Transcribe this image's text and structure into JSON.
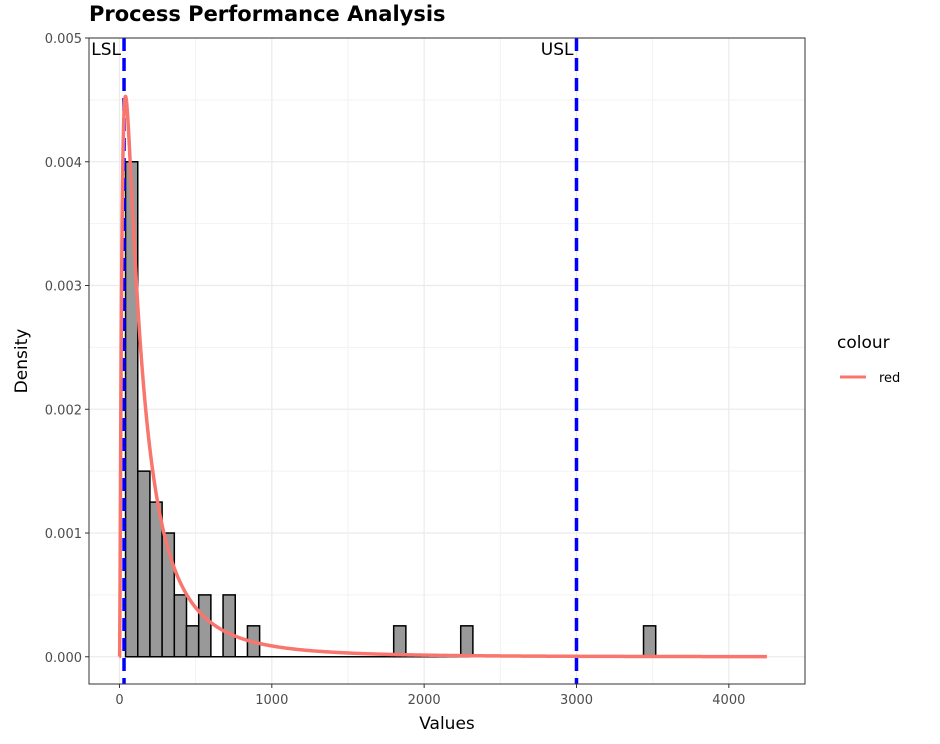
{
  "chart_data": {
    "type": "bar",
    "title": "Process Performance Analysis",
    "xlabel": "Values",
    "ylabel": "Density",
    "xlim": [
      -200,
      4500
    ],
    "ylim": [
      -0.00022,
      0.005
    ],
    "x_ticks": [
      0,
      1000,
      2000,
      3000,
      4000
    ],
    "x_tick_labels": [
      "0",
      "1000",
      "2000",
      "3000",
      "4000"
    ],
    "y_ticks": [
      0.0,
      0.001,
      0.002,
      0.003,
      0.004,
      0.005
    ],
    "y_tick_labels": [
      "0.000",
      "0.001",
      "0.002",
      "0.003",
      "0.004",
      "0.005"
    ],
    "grid": true,
    "histogram": {
      "bin_width": 80,
      "bins": [
        {
          "x0": 40,
          "x1": 120,
          "density": 0.004
        },
        {
          "x0": 120,
          "x1": 200,
          "density": 0.0015
        },
        {
          "x0": 200,
          "x1": 280,
          "density": 0.00125
        },
        {
          "x0": 280,
          "x1": 360,
          "density": 0.001
        },
        {
          "x0": 360,
          "x1": 440,
          "density": 0.0005
        },
        {
          "x0": 440,
          "x1": 520,
          "density": 0.00025
        },
        {
          "x0": 520,
          "x1": 600,
          "density": 0.0005
        },
        {
          "x0": 600,
          "x1": 680,
          "density": 0.0
        },
        {
          "x0": 680,
          "x1": 760,
          "density": 0.0005
        },
        {
          "x0": 760,
          "x1": 840,
          "density": 0.0
        },
        {
          "x0": 840,
          "x1": 920,
          "density": 0.00025
        },
        {
          "x0": 1800,
          "x1": 1880,
          "density": 0.00025
        },
        {
          "x0": 2240,
          "x1": 2320,
          "density": 0.00025
        },
        {
          "x0": 3440,
          "x1": 3520,
          "density": 0.00025
        }
      ],
      "baseline_range": [
        40,
        3520
      ],
      "fill": "#999999",
      "stroke": "#000000"
    },
    "density_curve": {
      "name": "red",
      "color": "#F8766D",
      "distribution": "lognormal",
      "meanlog": 5.0,
      "sdlog": 1.15,
      "x_range": [
        0,
        4250
      ]
    },
    "spec_limits": [
      {
        "label": "LSL",
        "value": 30,
        "color": "#0000FF"
      },
      {
        "label": "USL",
        "value": 3000,
        "color": "#0000FF"
      }
    ],
    "legend": {
      "title": "colour",
      "entries": [
        {
          "label": "red",
          "color": "#F8766D"
        }
      ],
      "position": "right"
    }
  }
}
